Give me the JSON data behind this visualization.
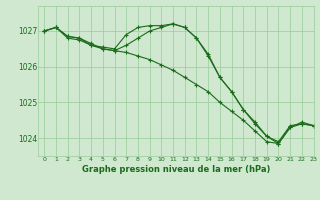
{
  "title": "Graphe pression niveau de la mer (hPa)",
  "background_color": "#cfe8cf",
  "grid_color": "#99cc99",
  "line_color": "#1a6b1a",
  "xlim": [
    -0.5,
    23
  ],
  "ylim": [
    1023.5,
    1027.7
  ],
  "yticks": [
    1024,
    1025,
    1026,
    1027
  ],
  "xticks": [
    0,
    1,
    2,
    3,
    4,
    5,
    6,
    7,
    8,
    9,
    10,
    11,
    12,
    13,
    14,
    15,
    16,
    17,
    18,
    19,
    20,
    21,
    22,
    23
  ],
  "series": [
    [
      1027.0,
      1027.1,
      1026.8,
      1026.75,
      1026.6,
      1026.5,
      1026.45,
      1026.4,
      1026.3,
      1026.2,
      1026.05,
      1025.9,
      1025.7,
      1025.5,
      1025.3,
      1025.0,
      1024.75,
      1024.5,
      1024.2,
      1023.9,
      1023.85,
      1024.3,
      1024.4,
      1024.35
    ],
    [
      1027.0,
      1027.1,
      1026.85,
      1026.8,
      1026.6,
      1026.55,
      1026.5,
      1026.9,
      1027.1,
      1027.15,
      1027.15,
      1027.2,
      1027.1,
      1026.8,
      1026.3,
      1025.7,
      1025.3,
      1024.8,
      1024.4,
      1024.05,
      1023.9,
      1024.35,
      1024.4,
      1024.35
    ],
    [
      1027.0,
      1027.1,
      1026.85,
      1026.8,
      1026.65,
      1026.5,
      1026.45,
      1026.6,
      1026.8,
      1027.0,
      1027.1,
      1027.2,
      1027.1,
      1026.8,
      1026.35,
      1025.7,
      1025.3,
      1024.8,
      1024.45,
      1024.05,
      1023.85,
      1024.3,
      1024.45,
      1024.35
    ]
  ]
}
